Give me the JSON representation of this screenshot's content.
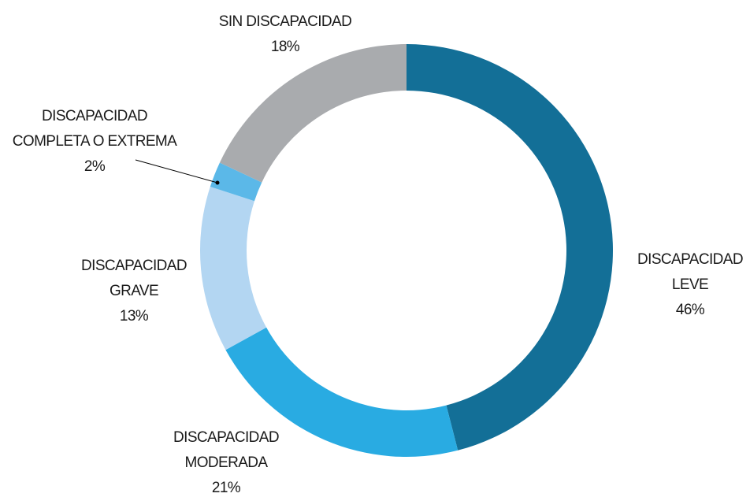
{
  "chart_data": {
    "type": "donut",
    "categories": [
      "DISCAPACIDAD LEVE",
      "DISCAPACIDAD MODERADA",
      "DISCAPACIDAD GRAVE",
      "DISCAPACIDAD COMPLETA O EXTREMA",
      "SIN DISCAPACIDAD"
    ],
    "values": [
      46,
      21,
      13,
      2,
      18
    ],
    "value_labels": [
      "46%",
      "21%",
      "13%",
      "2%",
      "18%"
    ],
    "colors": [
      "#136f97",
      "#29abe2",
      "#b3d6f2",
      "#5bb8e8",
      "#a9abae"
    ]
  }
}
